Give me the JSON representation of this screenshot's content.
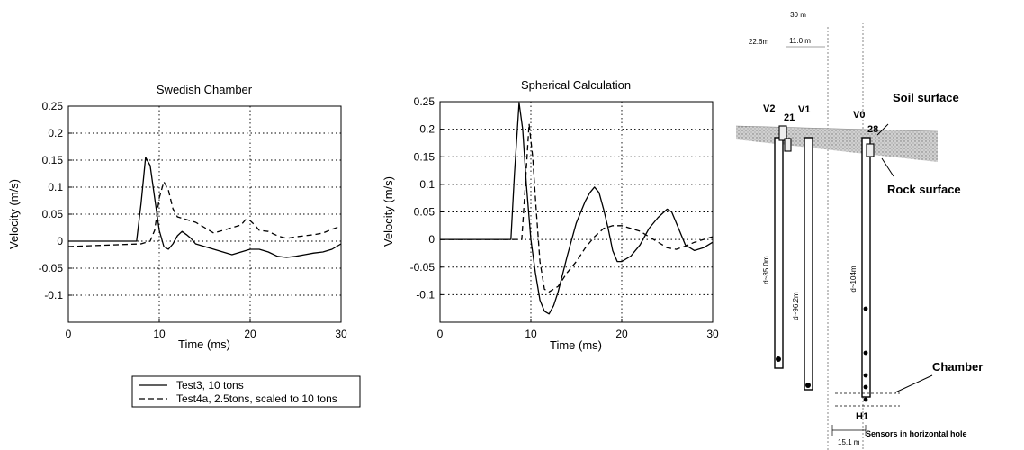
{
  "chart_data": [
    {
      "type": "line",
      "title": "Swedish Chamber",
      "xlabel": "Time (ms)",
      "ylabel": "Velocity (m/s)",
      "xlim": [
        0,
        30
      ],
      "ylim": [
        -0.15,
        0.25
      ],
      "xticks": [
        0,
        10,
        20,
        30
      ],
      "yticks": [
        0.25,
        0.2,
        0.15,
        0.1,
        0.05,
        0,
        -0.05,
        -0.1
      ],
      "ytick_labels": [
        "0.25",
        "0.2",
        "0.15",
        "0.1",
        "0.05",
        "0",
        "-0.05",
        "-0.1"
      ],
      "grid": true,
      "series": [
        {
          "name": "Test3, 10 tons",
          "style": "solid",
          "x": [
            0,
            7.5,
            8.0,
            8.5,
            9.0,
            9.5,
            10,
            10.5,
            11,
            11.5,
            12,
            12.5,
            13,
            13.5,
            14,
            15,
            16,
            17,
            18,
            19,
            20,
            21,
            22,
            23,
            24,
            25,
            26,
            27,
            28,
            29,
            30
          ],
          "y": [
            0,
            0,
            0.07,
            0.155,
            0.14,
            0.08,
            0.02,
            -0.01,
            -0.015,
            -0.005,
            0.01,
            0.018,
            0.012,
            0.005,
            -0.005,
            -0.01,
            -0.015,
            -0.02,
            -0.025,
            -0.02,
            -0.015,
            -0.015,
            -0.02,
            -0.028,
            -0.03,
            -0.028,
            -0.025,
            -0.022,
            -0.02,
            -0.015,
            -0.005
          ]
        },
        {
          "name": "Test4a, 2.5tons, scaled to 10 tons",
          "style": "dashed",
          "x": [
            0,
            8,
            9,
            9.5,
            10,
            10.5,
            11,
            11.5,
            12,
            13,
            14,
            15,
            16,
            17,
            18,
            19,
            19.5,
            20,
            20.5,
            21,
            22,
            23,
            24,
            25,
            26,
            27,
            28,
            29,
            30
          ],
          "y": [
            -0.01,
            -0.005,
            0,
            0.02,
            0.08,
            0.11,
            0.095,
            0.06,
            0.045,
            0.04,
            0.035,
            0.025,
            0.015,
            0.02,
            0.025,
            0.03,
            0.04,
            0.038,
            0.03,
            0.02,
            0.018,
            0.01,
            0.005,
            0.008,
            0.01,
            0.012,
            0.015,
            0.022,
            0.028
          ]
        }
      ],
      "legend": {
        "position": "bottom",
        "entries": [
          "Test3, 10 tons",
          "Test4a, 2.5tons, scaled to 10 tons"
        ]
      }
    },
    {
      "type": "line",
      "title": "Spherical Calculation",
      "xlabel": "Time (ms)",
      "ylabel": "Velocity (m/s)",
      "xlim": [
        0,
        30
      ],
      "ylim": [
        -0.15,
        0.25
      ],
      "xticks": [
        0,
        10,
        20,
        30
      ],
      "yticks": [
        0.25,
        0.2,
        0.15,
        0.1,
        0.05,
        0,
        -0.05,
        -0.1
      ],
      "ytick_labels": [
        "0.25",
        "0.2",
        "0.15",
        "0.1",
        "0.05",
        "0",
        "-0.05",
        "-0.1"
      ],
      "grid": true,
      "series": [
        {
          "style": "solid",
          "x": [
            0,
            7.8,
            8.2,
            8.7,
            9.1,
            9.5,
            10,
            10.5,
            11,
            11.5,
            12,
            12.5,
            13,
            14,
            15,
            16,
            16.5,
            17,
            17.5,
            18,
            18.5,
            19,
            19.5,
            20,
            21,
            22,
            23,
            24,
            25,
            25.5,
            26,
            27,
            28,
            29,
            30
          ],
          "y": [
            0,
            0,
            0.12,
            0.248,
            0.2,
            0.1,
            0,
            -0.06,
            -0.11,
            -0.13,
            -0.135,
            -0.12,
            -0.095,
            -0.03,
            0.03,
            0.07,
            0.085,
            0.095,
            0.085,
            0.055,
            0.02,
            -0.02,
            -0.04,
            -0.04,
            -0.03,
            -0.01,
            0.02,
            0.04,
            0.055,
            0.05,
            0.03,
            -0.01,
            -0.02,
            -0.015,
            -0.005
          ]
        },
        {
          "style": "dashed",
          "x": [
            0,
            9.0,
            9.4,
            9.8,
            10.2,
            10.6,
            11,
            11.5,
            12,
            13,
            14,
            15,
            16,
            17,
            18,
            19,
            20,
            21,
            22,
            23,
            24,
            25,
            26,
            27,
            28,
            29,
            30
          ],
          "y": [
            0,
            0,
            0.1,
            0.21,
            0.15,
            0.05,
            -0.04,
            -0.09,
            -0.095,
            -0.085,
            -0.06,
            -0.04,
            -0.015,
            0.005,
            0.02,
            0.025,
            0.025,
            0.02,
            0.015,
            0.005,
            -0.005,
            -0.015,
            -0.018,
            -0.012,
            -0.005,
            0.0,
            0.005
          ]
        }
      ]
    }
  ],
  "diagram": {
    "dim_top": "30 m",
    "dim_left": "22.6m",
    "dim_mid": "11.0 m",
    "label_v2": "V2",
    "label_21": "21",
    "label_v1": "V1",
    "label_v0": "V0",
    "label_28": "28",
    "label_soil": "Soil surface",
    "label_rock": "Rock surface",
    "depth_v2": "d~85.0m",
    "depth_v1": "d~96.2m",
    "depth_v0": "d~104m",
    "label_chamber": "Chamber",
    "label_h1": "H1",
    "dim_bottom": "15.1 m",
    "label_sensors": "Sensors in horizontal hole"
  }
}
